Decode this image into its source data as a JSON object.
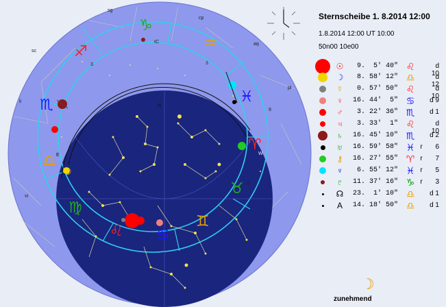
{
  "header": {
    "title": "Sternscheibe  1. 8.2014 12:00",
    "datetime": "1.8.2014 12:00 UT 10:00",
    "location": "50n00 10e00"
  },
  "colors": {
    "sky_disc": "#8e98ec",
    "horizon_disc": "#1a257e",
    "ecliptic": "#2fd0f0",
    "background": "#e9edf6"
  },
  "sky_labels": {
    "sg": "sg",
    "cp": "cp",
    "aq": "aq",
    "sc": "sc",
    "li": "li",
    "pi": "pi",
    "vi": "vi",
    "N": "N",
    "E": "E",
    "W": "W",
    "S": "S",
    "IC": "IC",
    "num3": "3",
    "num5": "5",
    "num2": "2",
    "num9": "9",
    "num8": "8"
  },
  "planets": [
    {
      "name": "sun-row",
      "dot_color": "#ff0000",
      "dot_size": 22,
      "symbol": "☉",
      "symbol_color": "#ff0000",
      "position": "9.  5' 40\"",
      "sign": "♌",
      "sign_color": "#ff2a2a",
      "retro": "",
      "house": "d 10"
    },
    {
      "name": "moon-row",
      "dot_color": "#f2d400",
      "dot_size": 14,
      "symbol": "☽",
      "symbol_color": "#1a1aff",
      "position": "8. 58' 12\"",
      "sign": "♎",
      "sign_color": "#e8a000",
      "retro": "",
      "house": "d 12"
    },
    {
      "name": "mercury-row",
      "dot_color": "#808080",
      "dot_size": 10,
      "symbol": "☿",
      "symbol_color": "#e8a000",
      "position": "0. 57' 50\"",
      "sign": "♌",
      "sign_color": "#ff2a2a",
      "retro": "",
      "house": "d 10"
    },
    {
      "name": "venus-row",
      "dot_color": "#f08080",
      "dot_size": 10,
      "symbol": "♀",
      "symbol_color": "#ff2a2a",
      "position": "16. 44'  5\"",
      "sign": "♋",
      "sign_color": "#1a1aff",
      "retro": "",
      "house": "d  9"
    },
    {
      "name": "mars-row",
      "dot_color": "#ff0000",
      "dot_size": 10,
      "symbol": "♂",
      "symbol_color": "#ff2a2a",
      "position": "3. 22' 36\"",
      "sign": "♏",
      "sign_color": "#1a1aff",
      "retro": "",
      "house": "d  1"
    },
    {
      "name": "jupiter-row",
      "dot_color": "#ff0000",
      "dot_size": 8,
      "symbol": "♃",
      "symbol_color": "#ff2a2a",
      "position": "3. 33'  1\"",
      "sign": "♌",
      "sign_color": "#ff2a2a",
      "retro": "",
      "house": "d 10"
    },
    {
      "name": "saturn-row",
      "dot_color": "#8b1a1a",
      "dot_size": 14,
      "symbol": "♄",
      "symbol_color": "#00a000",
      "position": "16. 45' 10\"",
      "sign": "♏",
      "sign_color": "#1a1aff",
      "retro": "",
      "house": "d  2"
    },
    {
      "name": "uranus-row",
      "dot_color": "#000000",
      "dot_size": 7,
      "symbol": "♅",
      "symbol_color": "#00a000",
      "position": "16. 59' 58\"",
      "sign": "♓",
      "sign_color": "#1a1aff",
      "retro": "r",
      "house": "6"
    },
    {
      "name": "chiron-row",
      "dot_color": "#22cc22",
      "dot_size": 10,
      "symbol": "⚷",
      "symbol_color": "#e8a000",
      "position": "16. 27' 55\"",
      "sign": "♈",
      "sign_color": "#ff2a2a",
      "retro": "r",
      "house": "7"
    },
    {
      "name": "neptune-row",
      "dot_color": "#00e5ff",
      "dot_size": 10,
      "symbol": "♆",
      "symbol_color": "#1a1aff",
      "position": "6. 55' 12\"",
      "sign": "♓",
      "sign_color": "#1a1aff",
      "retro": "r",
      "house": "5"
    },
    {
      "name": "pluto-row",
      "dot_color": "#8b1a1a",
      "dot_size": 6,
      "symbol": "♇",
      "symbol_color": "#00a000",
      "position": "11. 37' 16\"",
      "sign": "♑",
      "sign_color": "#00a000",
      "retro": "r",
      "house": "3"
    },
    {
      "name": "node-row",
      "dot_color": "#000000",
      "dot_size": 3,
      "symbol": "☊",
      "symbol_color": "#000000",
      "position": "23.  1' 10\"",
      "sign": "♎",
      "sign_color": "#e8a000",
      "retro": "",
      "house": "d  1"
    },
    {
      "name": "asc-row",
      "dot_color": "#000000",
      "dot_size": 3,
      "symbol": "A",
      "symbol_color": "#000000",
      "position": "14. 18' 50\"",
      "sign": "♎",
      "sign_color": "#e8a000",
      "retro": "",
      "house": "d  1"
    }
  ],
  "moon_phase": {
    "icon": "☽",
    "label": "zunehmend"
  }
}
